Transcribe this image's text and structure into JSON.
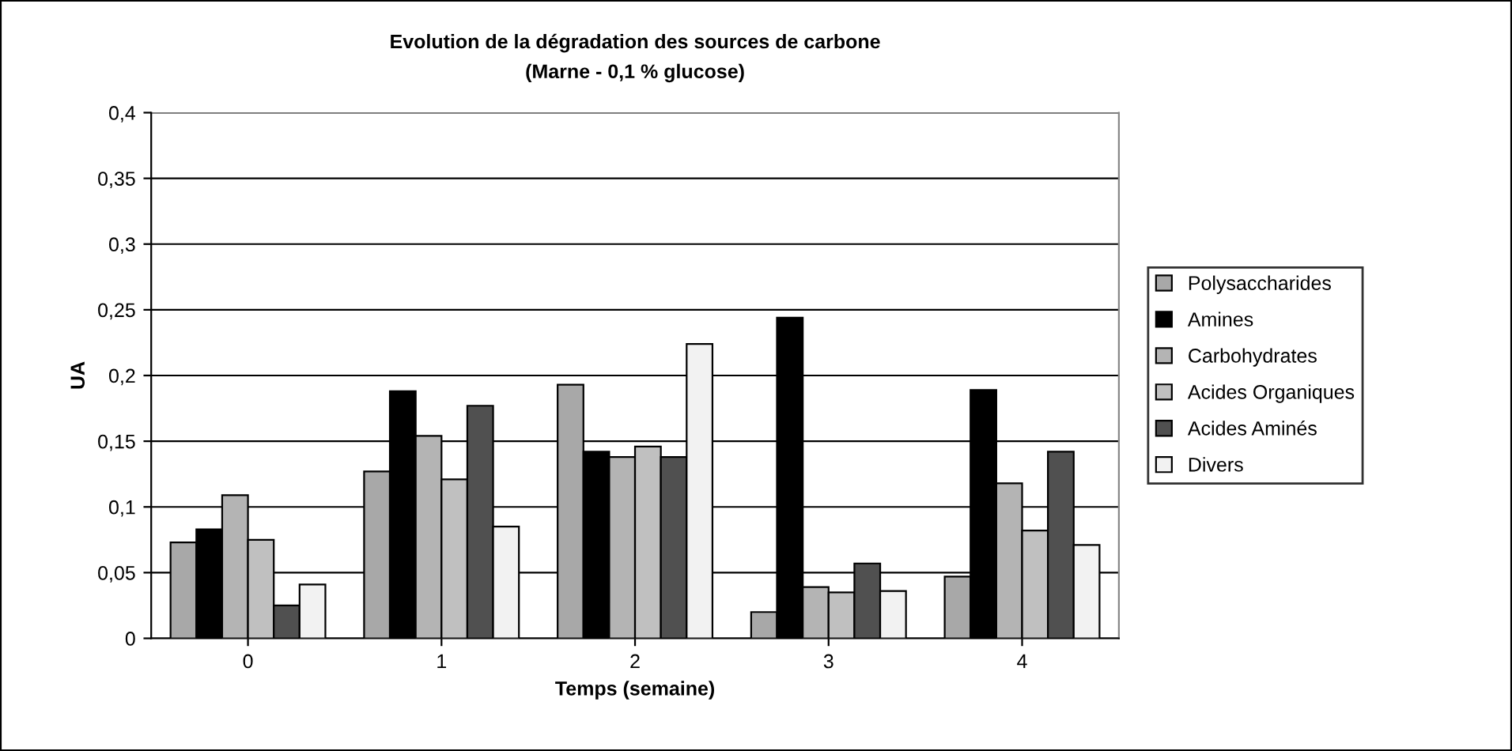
{
  "chart_data": {
    "type": "bar",
    "title": "Evolution de la dégradation des sources de carbone",
    "subtitle": "(Marne - 0,1 % glucose)",
    "xlabel": "Temps (semaine)",
    "ylabel": "UA",
    "categories": [
      "0",
      "1",
      "2",
      "3",
      "4"
    ],
    "series": [
      {
        "name": "Polysaccharides",
        "color": "#a8a8a8",
        "values": [
          0.073,
          0.127,
          0.193,
          0.02,
          0.047
        ]
      },
      {
        "name": "Amines",
        "color": "#000000",
        "values": [
          0.083,
          0.188,
          0.142,
          0.244,
          0.189
        ]
      },
      {
        "name": "Carbohydrates",
        "color": "#b4b4b4",
        "values": [
          0.109,
          0.154,
          0.138,
          0.039,
          0.118
        ]
      },
      {
        "name": "Acides Organiques",
        "color": "#c0c0c0",
        "values": [
          0.075,
          0.121,
          0.146,
          0.035,
          0.082
        ]
      },
      {
        "name": "Acides Aminés",
        "color": "#505050",
        "values": [
          0.025,
          0.177,
          0.138,
          0.057,
          0.142
        ]
      },
      {
        "name": "Divers",
        "color": "#f2f2f2",
        "values": [
          0.041,
          0.085,
          0.224,
          0.036,
          0.071
        ]
      }
    ],
    "ylim": [
      0,
      0.4
    ],
    "yticks": [
      0,
      {
        "value": 0.05,
        "label": "0,05"
      },
      {
        "value": 0.1,
        "label": "0,1"
      },
      {
        "value": 0.15,
        "label": "0,15"
      },
      {
        "value": 0.2,
        "label": "0,2"
      },
      {
        "value": 0.25,
        "label": "0,25"
      },
      {
        "value": 0.3,
        "label": "0,3"
      },
      {
        "value": 0.35,
        "label": "0,35"
      },
      {
        "value": 0.4,
        "label": "0,4"
      }
    ],
    "grid": "y",
    "legend": "right"
  }
}
